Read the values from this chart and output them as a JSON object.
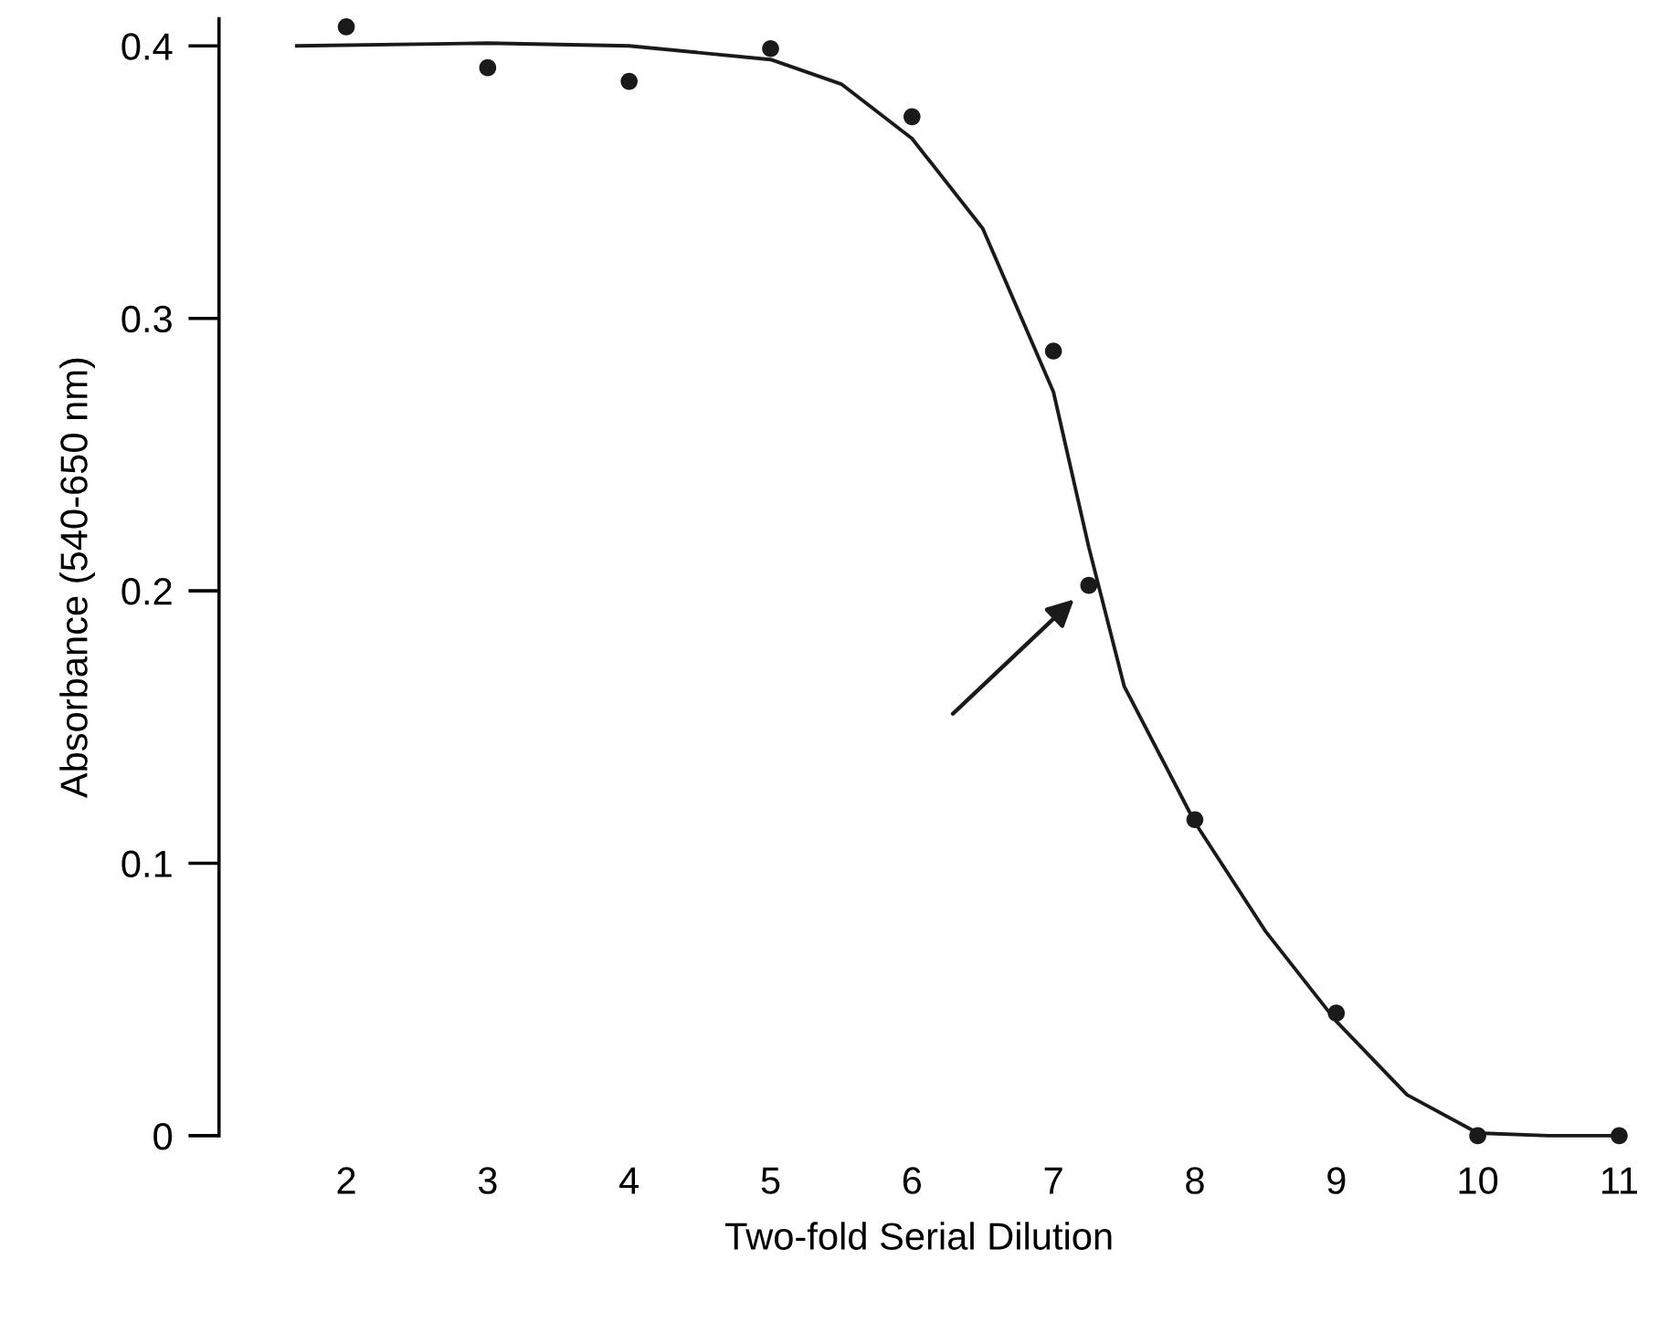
{
  "chart_data": {
    "type": "scatter",
    "xlabel": "Two-fold Serial Dilution",
    "ylabel": "Absorbance (540-650 nm)",
    "xlim": [
      1.1,
      11
    ],
    "xticks": [
      2,
      3,
      4,
      5,
      6,
      7,
      8,
      9,
      10,
      11
    ],
    "ylim": [
      0,
      0.41
    ],
    "yticks": [
      0,
      0.1,
      0.2,
      0.3,
      0.4
    ],
    "grid": false,
    "marker": "circle",
    "tick_labels": "xy",
    "series": [
      {
        "color": "#1a1a1a",
        "x": [
          2,
          3,
          4,
          5,
          6,
          7,
          7.25,
          8,
          9,
          10,
          11
        ],
        "values": [
          0.407,
          0.392,
          0.387,
          0.399,
          0.374,
          0.288,
          0.202,
          0.116,
          0.045,
          0,
          0
        ]
      },
      {
        "type": "line",
        "color": "#1a1a1a",
        "line_style": "solid",
        "marker": "none",
        "x": [
          1.65,
          3,
          4,
          5,
          5.5,
          6,
          6.5,
          7,
          7.25,
          7.5,
          8,
          8.5,
          9,
          9.5,
          10,
          10.5,
          11
        ],
        "values": [
          0.4,
          0.401,
          0.4,
          0.395,
          0.386,
          0.366,
          0.333,
          0.273,
          0.216,
          0.165,
          0.115,
          0.075,
          0.042,
          0.015,
          0.001,
          0,
          0
        ]
      }
    ]
  }
}
